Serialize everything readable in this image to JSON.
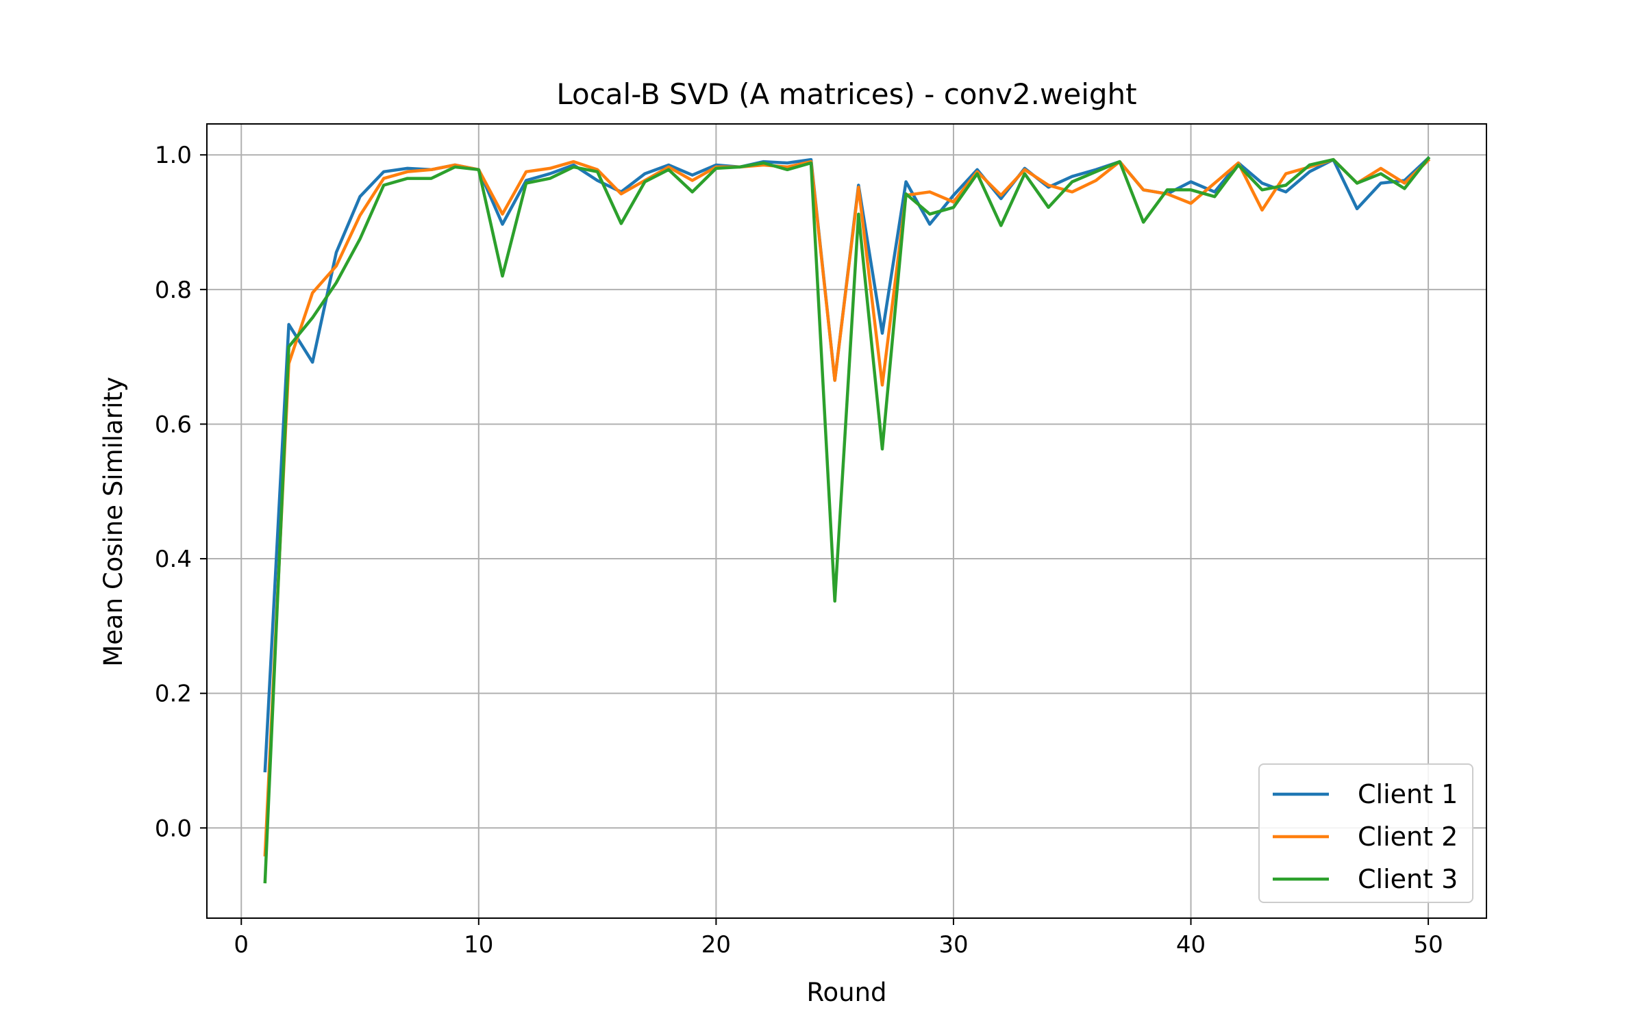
{
  "chart_data": {
    "type": "line",
    "title": "Local-B SVD (A matrices) - conv2.weight",
    "xlabel": "Round",
    "ylabel": "Mean Cosine Similarity",
    "xlim": [
      -1.45,
      52.45
    ],
    "ylim": [
      -0.134,
      1.046
    ],
    "xticks": [
      0,
      10,
      20,
      30,
      40,
      50
    ],
    "yticks": [
      0.0,
      0.2,
      0.4,
      0.6,
      0.8,
      1.0
    ],
    "xtick_labels": [
      "0",
      "10",
      "20",
      "30",
      "40",
      "50"
    ],
    "ytick_labels": [
      "0.0",
      "0.2",
      "0.4",
      "0.6",
      "0.8",
      "1.0"
    ],
    "grid": true,
    "legend_position": "lower right",
    "x": [
      1,
      2,
      3,
      4,
      5,
      6,
      7,
      8,
      9,
      10,
      11,
      12,
      13,
      14,
      15,
      16,
      17,
      18,
      19,
      20,
      21,
      22,
      23,
      24,
      25,
      26,
      27,
      28,
      29,
      30,
      31,
      32,
      33,
      34,
      35,
      36,
      37,
      38,
      39,
      40,
      41,
      42,
      43,
      44,
      45,
      46,
      47,
      48,
      49,
      50
    ],
    "series": [
      {
        "name": "Client 1",
        "color": "#1f77b4",
        "values": [
          0.085,
          0.748,
          0.692,
          0.855,
          0.938,
          0.975,
          0.98,
          0.978,
          0.985,
          0.978,
          0.897,
          0.962,
          0.972,
          0.985,
          0.962,
          0.945,
          0.972,
          0.985,
          0.97,
          0.985,
          0.982,
          0.99,
          0.988,
          0.993,
          0.665,
          0.955,
          0.735,
          0.96,
          0.897,
          0.94,
          0.978,
          0.935,
          0.98,
          0.952,
          0.968,
          0.978,
          0.99,
          0.948,
          0.942,
          0.96,
          0.945,
          0.988,
          0.958,
          0.945,
          0.975,
          0.993,
          0.92,
          0.958,
          0.962,
          0.995
        ]
      },
      {
        "name": "Client 2",
        "color": "#ff7f0e",
        "values": [
          -0.04,
          0.69,
          0.795,
          0.835,
          0.91,
          0.965,
          0.975,
          0.978,
          0.985,
          0.978,
          0.912,
          0.975,
          0.98,
          0.99,
          0.978,
          0.942,
          0.962,
          0.982,
          0.962,
          0.982,
          0.982,
          0.985,
          0.982,
          0.99,
          0.665,
          0.952,
          0.658,
          0.94,
          0.945,
          0.93,
          0.975,
          0.94,
          0.978,
          0.955,
          0.945,
          0.962,
          0.99,
          0.948,
          0.942,
          0.928,
          0.958,
          0.988,
          0.918,
          0.972,
          0.982,
          0.993,
          0.958,
          0.98,
          0.958,
          0.992
        ]
      },
      {
        "name": "Client 3",
        "color": "#2ca02c",
        "values": [
          -0.08,
          0.715,
          0.758,
          0.81,
          0.875,
          0.955,
          0.965,
          0.965,
          0.982,
          0.978,
          0.82,
          0.958,
          0.965,
          0.982,
          0.975,
          0.898,
          0.96,
          0.978,
          0.945,
          0.98,
          0.982,
          0.988,
          0.978,
          0.988,
          0.337,
          0.912,
          0.563,
          0.942,
          0.912,
          0.922,
          0.972,
          0.895,
          0.972,
          0.922,
          0.96,
          0.975,
          0.99,
          0.9,
          0.948,
          0.948,
          0.938,
          0.985,
          0.948,
          0.955,
          0.985,
          0.993,
          0.958,
          0.972,
          0.95,
          0.995
        ]
      }
    ]
  }
}
